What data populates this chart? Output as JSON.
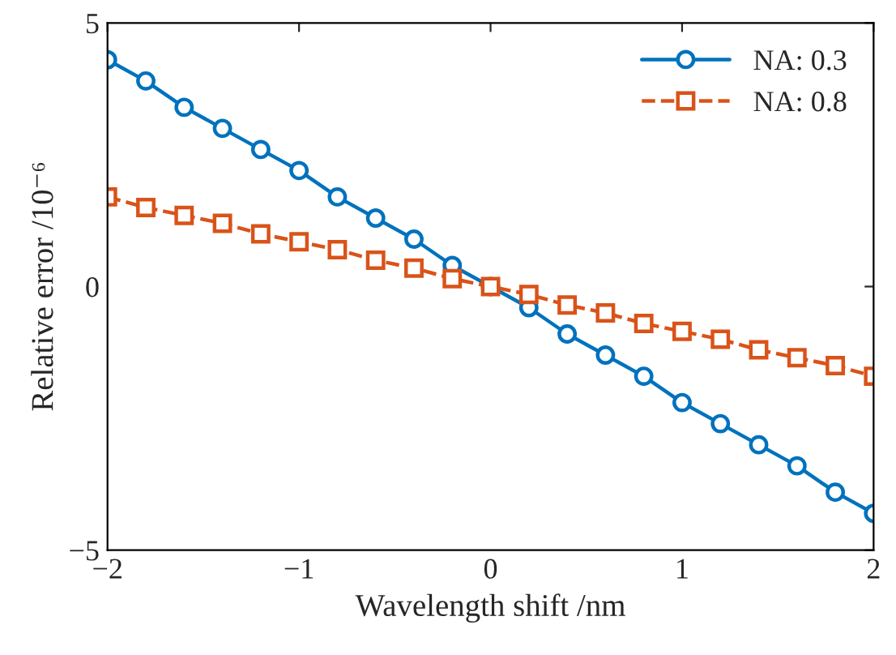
{
  "chart_data": {
    "type": "line",
    "xlabel": "Wavelength shift /nm",
    "ylabel": "Relative error /10⁻⁶",
    "x": [
      -2,
      -1.8,
      -1.6,
      -1.4,
      -1.2,
      -1,
      -0.8,
      -0.6,
      -0.4,
      -0.2,
      0,
      0.2,
      0.4,
      0.6,
      0.8,
      1,
      1.2,
      1.4,
      1.6,
      1.8,
      2
    ],
    "series": [
      {
        "name": "NA: 0.3",
        "color": "#0072bd",
        "marker": "circle",
        "line_style": "solid",
        "values": [
          4.3,
          3.9,
          3.4,
          3.0,
          2.6,
          2.2,
          1.7,
          1.3,
          0.9,
          0.4,
          0,
          -0.4,
          -0.9,
          -1.3,
          -1.7,
          -2.2,
          -2.6,
          -3.0,
          -3.4,
          -3.9,
          -4.3
        ]
      },
      {
        "name": "NA: 0.8",
        "color": "#d95319",
        "marker": "square",
        "line_style": "dashed",
        "values": [
          1.7,
          1.5,
          1.35,
          1.2,
          1.0,
          0.85,
          0.7,
          0.5,
          0.35,
          0.15,
          0,
          -0.15,
          -0.35,
          -0.5,
          -0.7,
          -0.85,
          -1.0,
          -1.2,
          -1.35,
          -1.5,
          -1.7
        ]
      }
    ],
    "xlim": [
      -2,
      2
    ],
    "xticks": [
      {
        "value": -2,
        "label": "−2"
      },
      {
        "value": -1,
        "label": "−1"
      },
      0,
      1,
      2
    ],
    "ylim": [
      -5,
      5
    ],
    "yticks": [
      {
        "value": -5,
        "label": "−5"
      },
      0,
      5
    ],
    "grid": false,
    "legend": "top right"
  }
}
